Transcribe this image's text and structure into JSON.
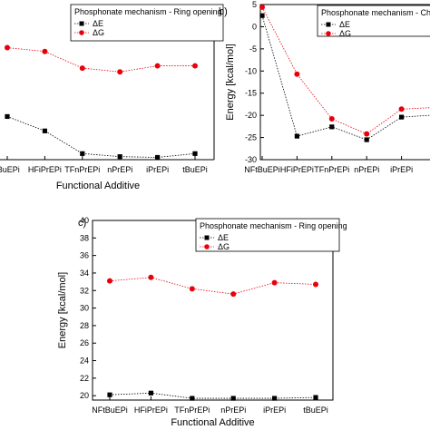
{
  "chart_data": [
    {
      "panel_label": "",
      "type": "line",
      "categories": [
        "tBuEPi",
        "HFiPrEPi",
        "TFnPrEPi",
        "nPrEPi",
        "iPrEPi",
        "tBuEPi"
      ],
      "xlabel": "Functional Additive",
      "ylabel": "",
      "ylim": [
        19.5,
        40
      ],
      "legend_title": "Phosphonate mechanism - Ring opening",
      "legend_position": "top-right",
      "grid": false,
      "series": [
        {
          "name": "ΔE",
          "marker": "square",
          "color": "#000000",
          "values": [
            25.2,
            23.3,
            20.3,
            19.9,
            19.8,
            20.3
          ]
        },
        {
          "name": "ΔG",
          "marker": "circle",
          "color": "#e8000b",
          "values": [
            34.3,
            33.8,
            31.6,
            31.1,
            31.9,
            31.9
          ]
        }
      ]
    },
    {
      "panel_label": "b)",
      "type": "line",
      "categories": [
        "NFtBuEPi",
        "HFiPrEPi",
        "TFnPrEPi",
        "nPrEPi",
        "iPrEPi",
        ""
      ],
      "xlabel": "",
      "ylabel": "Energy [kcal/mol]",
      "ylim": [
        -30,
        5
      ],
      "yticks": [
        5,
        0,
        -5,
        -10,
        -15,
        -20,
        -25,
        -30
      ],
      "legend_title": "Phosphonate mechanism - Cha",
      "legend_position": "top-right",
      "grid": false,
      "series": [
        {
          "name": "ΔE",
          "marker": "square",
          "color": "#000000",
          "values": [
            2.5,
            -24.7,
            -22.6,
            -25.5,
            -20.4,
            -19.9
          ]
        },
        {
          "name": "ΔG",
          "marker": "circle",
          "color": "#e8000b",
          "values": [
            4.4,
            -10.7,
            -20.8,
            -24.2,
            -18.6,
            -18.2
          ]
        }
      ]
    },
    {
      "panel_label": "c)",
      "type": "line",
      "categories": [
        "NFtBuEPi",
        "HFiPrEPi",
        "TFnPrEPi",
        "nPrEPi",
        "iPrEPi",
        "tBuEPi"
      ],
      "xlabel": "Functional Additive",
      "ylabel": "Energy [kcal/mol]",
      "ylim": [
        19.5,
        40
      ],
      "yticks": [
        20,
        22,
        24,
        26,
        28,
        30,
        32,
        34,
        36,
        38,
        40
      ],
      "legend_title": "Phosphonate mechanism - Ring opening",
      "legend_position": "top-right",
      "grid": false,
      "series": [
        {
          "name": "ΔE",
          "marker": "square",
          "color": "#000000",
          "values": [
            20.1,
            20.3,
            19.7,
            19.7,
            19.7,
            19.8
          ]
        },
        {
          "name": "ΔG",
          "marker": "circle",
          "color": "#e8000b",
          "values": [
            33.1,
            33.5,
            32.2,
            31.6,
            32.9,
            32.7
          ]
        }
      ]
    }
  ]
}
